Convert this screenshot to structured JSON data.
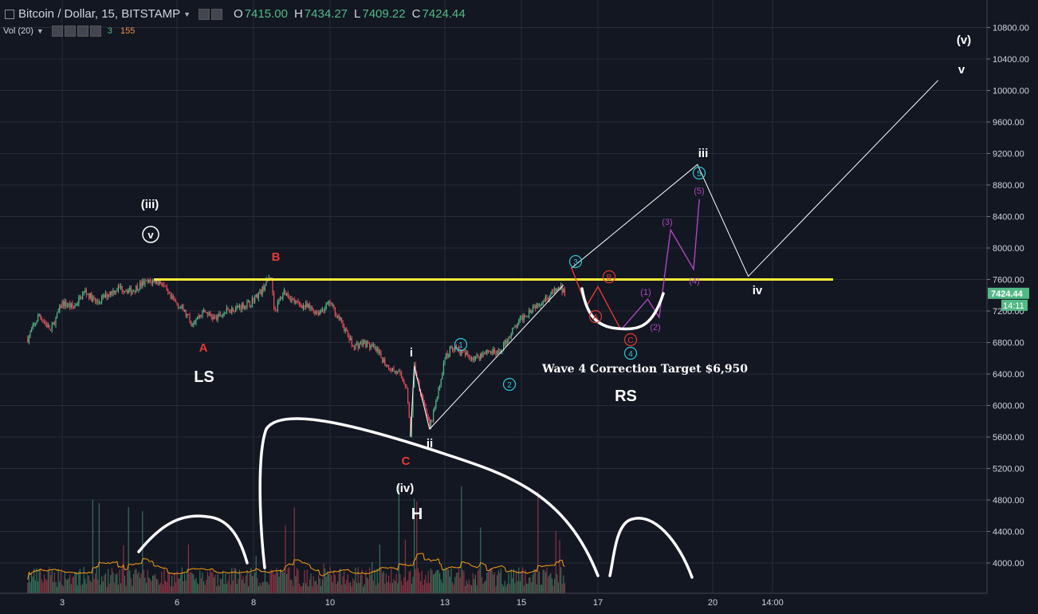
{
  "header": {
    "title": "Bitcoin / Dollar, 15, BITSTAMP",
    "open_label": "O",
    "open": "7415.00",
    "high_label": "H",
    "high": "7434.27",
    "low_label": "L",
    "low": "7409.22",
    "close_label": "C",
    "close": "7424.44",
    "volume_label": "Vol (20)",
    "vol_value1": "3",
    "vol_value2": "155"
  },
  "price_scale": {
    "labels": [
      "4000.00",
      "4400.00",
      "4800.00",
      "5200.00",
      "5600.00",
      "6000.00",
      "6400.00",
      "6800.00",
      "7200.00",
      "7600.00",
      "8000.00",
      "8400.00",
      "8800.00",
      "9200.00",
      "9600.00",
      "10000.00",
      "10400.00",
      "10800.00"
    ],
    "last_price": "7424.44",
    "countdown": "14:11"
  },
  "time_scale": {
    "labels": [
      "3",
      "6",
      "8",
      "10",
      "13",
      "15",
      "17",
      "20",
      "14:00"
    ],
    "label_days": [
      3,
      6,
      8,
      10,
      13,
      15,
      17,
      20,
      21.5
    ]
  },
  "colors": {
    "background": "#131722",
    "up": "#53b987",
    "down": "#eb4d5c",
    "yellow_line": "#ffeb3b",
    "cyan": "#2ec8d6",
    "red_wave": "#e53935",
    "purple_wave": "#ab47bc",
    "volume_ma": "#f39c12"
  },
  "chart_data": {
    "type": "line",
    "title": "Bitcoin / Dollar, 15, BITSTAMP",
    "xlabel": "",
    "ylabel": "",
    "x_axis_days": [
      3,
      6,
      8,
      10,
      13,
      15,
      17,
      20
    ],
    "ylim": [
      3640,
      11240
    ],
    "grid": true,
    "price_path": [
      [
        2.1,
        6850
      ],
      [
        2.4,
        7150
      ],
      [
        2.7,
        6950
      ],
      [
        3.0,
        7300
      ],
      [
        3.3,
        7250
      ],
      [
        3.6,
        7450
      ],
      [
        3.9,
        7300
      ],
      [
        4.2,
        7420
      ],
      [
        4.5,
        7500
      ],
      [
        4.8,
        7450
      ],
      [
        5.1,
        7550
      ],
      [
        5.4,
        7580
      ],
      [
        5.6,
        7560
      ],
      [
        5.8,
        7380
      ],
      [
        6.1,
        7250
      ],
      [
        6.4,
        7050
      ],
      [
        6.7,
        7200
      ],
      [
        7.0,
        7100
      ],
      [
        7.3,
        7200
      ],
      [
        7.6,
        7250
      ],
      [
        7.9,
        7300
      ],
      [
        8.2,
        7450
      ],
      [
        8.45,
        7660
      ],
      [
        8.55,
        7200
      ],
      [
        8.8,
        7450
      ],
      [
        9.1,
        7300
      ],
      [
        9.4,
        7250
      ],
      [
        9.7,
        7180
      ],
      [
        10.0,
        7300
      ],
      [
        10.3,
        7050
      ],
      [
        10.6,
        6750
      ],
      [
        10.9,
        6800
      ],
      [
        11.2,
        6700
      ],
      [
        11.5,
        6500
      ],
      [
        11.8,
        6400
      ],
      [
        12.0,
        6250
      ],
      [
        12.1,
        5600
      ],
      [
        12.2,
        6500
      ],
      [
        12.35,
        6200
      ],
      [
        12.5,
        5950
      ],
      [
        12.6,
        5700
      ],
      [
        12.8,
        6100
      ],
      [
        13.0,
        6600
      ],
      [
        13.2,
        6750
      ],
      [
        13.5,
        6650
      ],
      [
        13.8,
        6600
      ],
      [
        14.1,
        6700
      ],
      [
        14.4,
        6650
      ],
      [
        14.7,
        6900
      ],
      [
        15.0,
        7100
      ],
      [
        15.3,
        7250
      ],
      [
        15.6,
        7350
      ],
      [
        15.8,
        7420
      ],
      [
        16.0,
        7500
      ],
      [
        16.15,
        7424
      ]
    ],
    "projection": [
      {
        "name": "Wave 4 Correction Target $6,950",
        "points": [
          [
            16.3,
            7420
          ],
          [
            17.2,
            7200
          ],
          [
            17.8,
            6950
          ],
          [
            18.3,
            7350
          ],
          [
            18.6,
            7200
          ],
          [
            19.0,
            8200
          ],
          [
            19.5,
            7700
          ],
          [
            19.7,
            8600
          ]
        ]
      }
    ],
    "annotations": [
      "(iii)",
      "v",
      "B",
      "A",
      "LS",
      "C",
      "i",
      "ii",
      "(iv)",
      "H",
      "1",
      "2",
      "3",
      "4",
      "5",
      "RS",
      "Wave 4 Correction Target $6,950",
      "iii",
      "iv",
      "v",
      "(v)",
      "A",
      "B",
      "C",
      "(1)",
      "(2)",
      "(3)",
      "(4)",
      "(5)"
    ],
    "horizontal_line": 7600
  },
  "labels": {
    "wave_iii_paren": "(iii)",
    "wave_v_circle": "v",
    "red_B": "B",
    "red_A": "A",
    "LS": "LS",
    "red_C": "C",
    "wave_i": "i",
    "wave_ii": "ii",
    "wave_iv_paren": "(iv)",
    "H": "H",
    "c1": "1",
    "c2": "2",
    "c3": "3",
    "c4": "4",
    "c5": "5",
    "RS": "RS",
    "target": "Wave 4 Correction Target $6,950",
    "wave_iii": "iii",
    "wave_iv": "iv",
    "wave_v": "v",
    "wave_v_paren": "(v)",
    "rA": "A",
    "rB": "B",
    "rC": "C",
    "p1": "(1)",
    "p2": "(2)",
    "p3": "(3)",
    "p4": "(4)",
    "p5": "(5)"
  }
}
